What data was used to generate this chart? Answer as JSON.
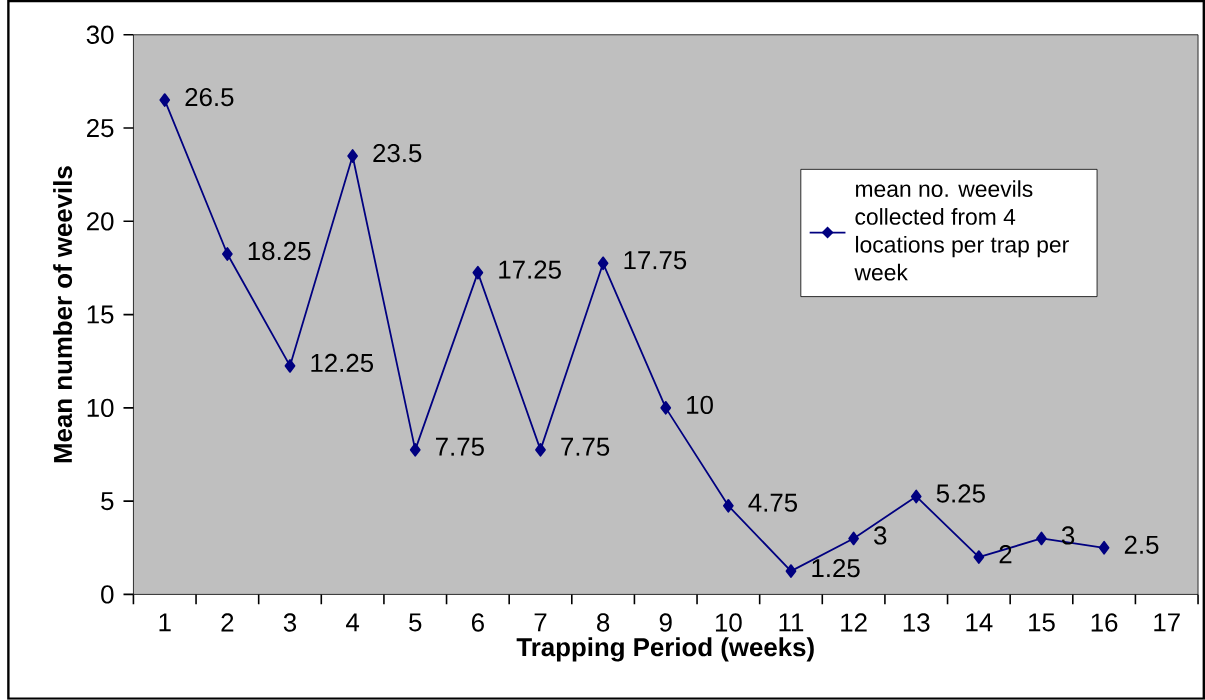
{
  "chart_data": {
    "type": "line",
    "xlabel": "Trapping Period (weeks)",
    "ylabel": "Mean number of weevils",
    "categories": [
      "1",
      "2",
      "3",
      "4",
      "5",
      "6",
      "7",
      "8",
      "9",
      "10",
      "11",
      "12",
      "13",
      "14",
      "15",
      "16",
      "17"
    ],
    "series": [
      {
        "name": "mean no. weevils collected from 4 locations per trap per week",
        "color": "#000080",
        "values": [
          26.5,
          18.25,
          12.25,
          23.5,
          7.75,
          17.25,
          7.75,
          17.75,
          10,
          4.75,
          1.25,
          3,
          5.25,
          2,
          3,
          2.5,
          null
        ]
      }
    ],
    "ylim": [
      0,
      30
    ],
    "yticks": [
      0,
      5,
      10,
      15,
      20,
      25,
      30
    ],
    "marker": "diamond",
    "line_style": "solid",
    "data_labels": true,
    "legend": "right"
  }
}
